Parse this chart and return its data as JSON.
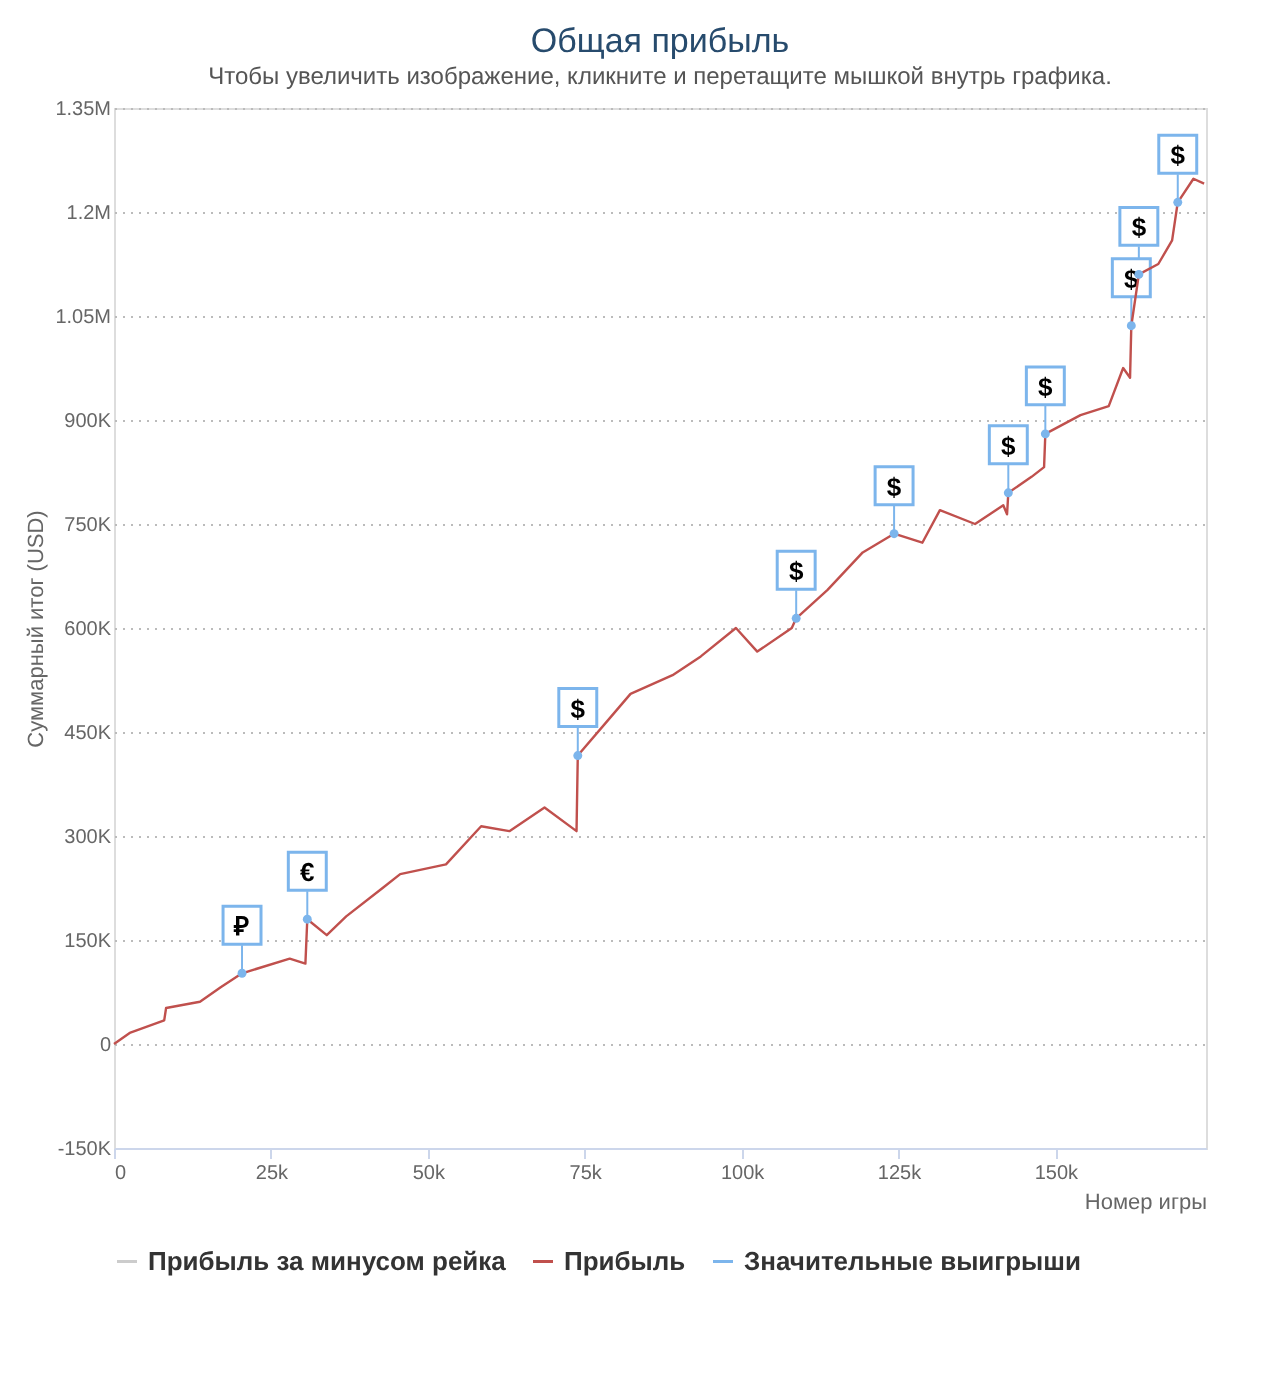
{
  "chart_data": {
    "type": "line",
    "title": "Общая прибыль",
    "subtitle": "Чтобы увеличить изображение, кликните и перетащите мышкой внутрь графика.",
    "xlabel": "Номер игры",
    "ylabel": "Суммарный итог (USD)",
    "xlim": [
      0,
      174000
    ],
    "ylim": [
      -150000,
      1350000
    ],
    "xticks": [
      {
        "value": 0,
        "label": "0"
      },
      {
        "value": 25000,
        "label": "25k"
      },
      {
        "value": 50000,
        "label": "50k"
      },
      {
        "value": 75000,
        "label": "75k"
      },
      {
        "value": 100000,
        "label": "100k"
      },
      {
        "value": 125000,
        "label": "125k"
      },
      {
        "value": 150000,
        "label": "150k"
      }
    ],
    "yticks": [
      {
        "value": -150000,
        "label": "-150K"
      },
      0,
      {
        "value": 150000,
        "label": "150K"
      },
      {
        "value": 300000,
        "label": "300K"
      },
      {
        "value": 450000,
        "label": "450K"
      },
      {
        "value": 600000,
        "label": "600K"
      },
      {
        "value": 750000,
        "label": "750K"
      },
      {
        "value": 900000,
        "label": "900K"
      },
      {
        "value": 1050000,
        "label": "1.05M"
      },
      {
        "value": 1200000,
        "label": "1.2M"
      },
      {
        "value": 1350000,
        "label": "1.35M"
      }
    ],
    "grid": "y",
    "legend": "bottom",
    "series": [
      {
        "name": "Прибыль за минусом рейка",
        "color": "#cccccc"
      },
      {
        "name": "Прибыль",
        "color": "#c0504d",
        "x": [
          0,
          2500,
          8000,
          8300,
          13700,
          17000,
          20400,
          28000,
          30500,
          30800,
          33900,
          37000,
          42800,
          45600,
          52900,
          58500,
          63000,
          68600,
          73700,
          73900,
          79000,
          82300,
          89000,
          93500,
          99100,
          102500,
          108000,
          108700,
          113700,
          119300,
          124300,
          128800,
          131600,
          137200,
          141700,
          142300,
          142500,
          146200,
          148200,
          148400,
          154000,
          158500,
          160800,
          161900,
          162100,
          163300,
          166400,
          168600,
          169500,
          172000,
          173700
        ],
        "values": [
          0,
          16000,
          34000,
          52000,
          61000,
          82000,
          102000,
          123000,
          116000,
          180000,
          157000,
          184000,
          225000,
          245000,
          259000,
          314000,
          307000,
          341000,
          307000,
          416000,
          470000,
          505000,
          532000,
          559000,
          600000,
          566000,
          600000,
          614000,
          655000,
          709000,
          736000,
          723000,
          770000,
          750000,
          777000,
          764000,
          795000,
          818000,
          832000,
          880000,
          907000,
          920000,
          975000,
          961000,
          1036000,
          1110000,
          1125000,
          1159000,
          1214000,
          1248000,
          1241000
        ]
      },
      {
        "name": "Значительные выигрыши",
        "color": "#7cb5ec",
        "type": "scatter",
        "marker": "circle",
        "x": [
          20400,
          30800,
          73900,
          108700,
          124300,
          142500,
          148400,
          162100,
          163300,
          169500
        ],
        "values": [
          102000,
          180000,
          416000,
          614000,
          736000,
          795000,
          880000,
          1036000,
          1110000,
          1214000
        ]
      }
    ],
    "annotations": [
      {
        "text": "₽",
        "x": 20400,
        "y": 102000
      },
      {
        "text": "€",
        "x": 30800,
        "y": 180000
      },
      {
        "text": "$",
        "x": 73900,
        "y": 416000
      },
      {
        "text": "$",
        "x": 108700,
        "y": 614000
      },
      {
        "text": "$",
        "x": 124300,
        "y": 736000
      },
      {
        "text": "$",
        "x": 142500,
        "y": 795000
      },
      {
        "text": "$",
        "x": 148400,
        "y": 880000
      },
      {
        "text": "$",
        "x": 162100,
        "y": 1036000
      },
      {
        "text": "$",
        "x": 163300,
        "y": 1110000
      },
      {
        "text": "$",
        "x": 169500,
        "y": 1214000
      }
    ]
  }
}
